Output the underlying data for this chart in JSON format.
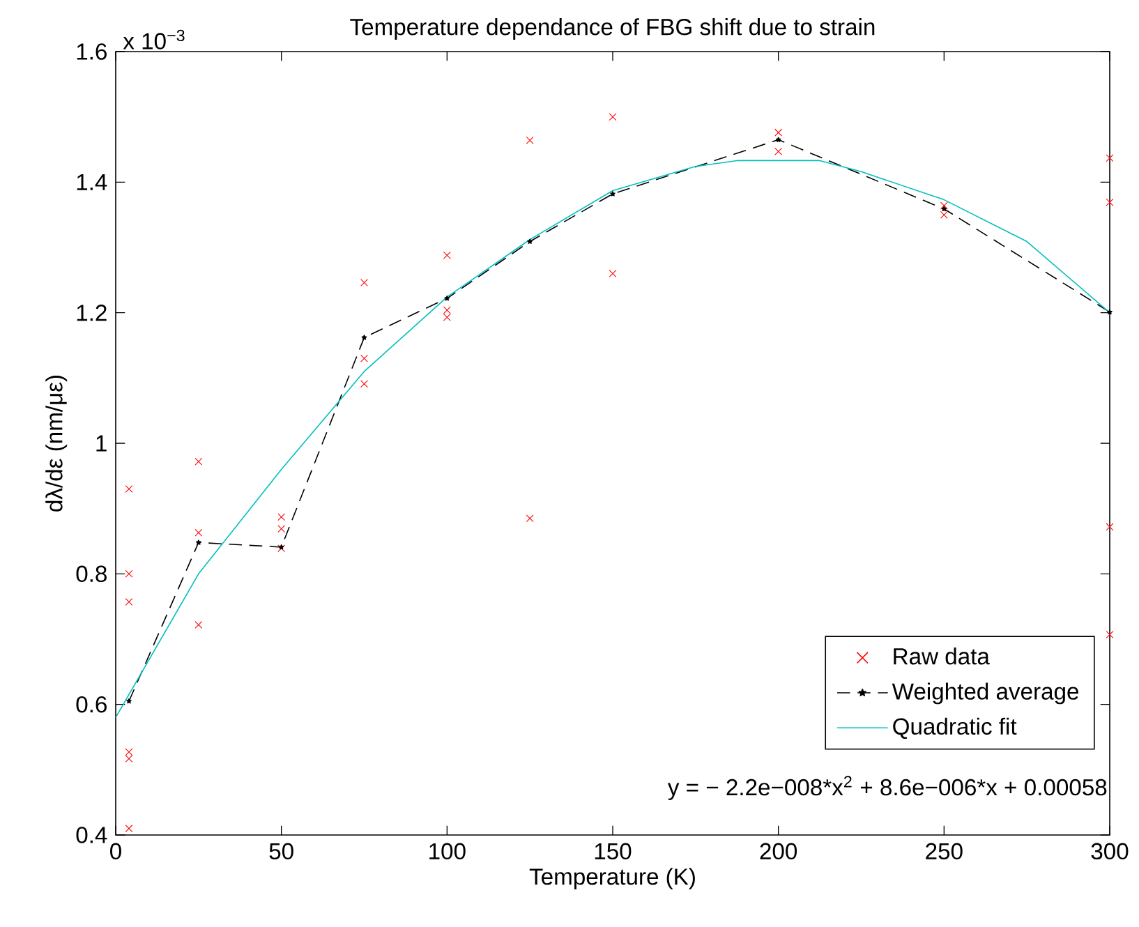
{
  "chart_data": {
    "type": "scatter",
    "title": "Temperature dependance of FBG shift due to strain",
    "xlabel": "Temperature (K)",
    "ylabel": "dλ/dε  (nm/με)",
    "xlim": [
      0,
      300
    ],
    "ylim": [
      0.4,
      1.6
    ],
    "xticks": [
      0,
      50,
      100,
      150,
      200,
      250,
      300
    ],
    "yticks": [
      0.4,
      0.6,
      0.8,
      1,
      1.2,
      1.4,
      1.6
    ],
    "legend": "bottom right",
    "grid": false,
    "annotations": [
      "x 10$^{−3}$",
      "y = − 2.2e−008*x$^{2}$ + 8.6e−006*x + 0.00058"
    ],
    "series": [
      {
        "name": "Raw data",
        "color": "#ff0000",
        "marker": "cross",
        "x": [
          4,
          4,
          4,
          4,
          4,
          4,
          25,
          25,
          25,
          50,
          50,
          50,
          75,
          75,
          75,
          100,
          100,
          100,
          125,
          125,
          150,
          150,
          200,
          200,
          250,
          250,
          300,
          300,
          300,
          300
        ],
        "values": [
          0.93,
          0.8,
          0.757,
          0.527,
          0.517,
          0.41,
          0.972,
          0.863,
          0.722,
          0.887,
          0.869,
          0.839,
          1.246,
          1.13,
          1.091,
          1.288,
          1.204,
          1.193,
          1.464,
          0.885,
          1.5,
          1.26,
          1.476,
          1.447,
          1.364,
          1.35,
          1.437,
          1.369,
          0.872,
          0.707
        ]
      },
      {
        "name": "Weighted average",
        "type": "line",
        "color": "#000000",
        "marker": "star",
        "line_style": "dashed",
        "x": [
          4,
          25,
          50,
          75,
          100,
          125,
          150,
          200,
          250,
          300
        ],
        "values": [
          0.605,
          0.848,
          0.841,
          1.162,
          1.222,
          1.309,
          1.382,
          1.465,
          1.359,
          1.201
        ]
      },
      {
        "name": "Quadratic fit",
        "type": "line",
        "color": "#00bfbf",
        "x": [
          0,
          25,
          50,
          75,
          100,
          125,
          150,
          175,
          187.5,
          212.5,
          225,
          250,
          275,
          300
        ],
        "values": [
          0.58,
          0.8,
          0.96,
          1.11,
          1.224,
          1.312,
          1.387,
          1.424,
          1.433,
          1.433,
          1.416,
          1.373,
          1.309,
          1.2
        ]
      }
    ]
  }
}
